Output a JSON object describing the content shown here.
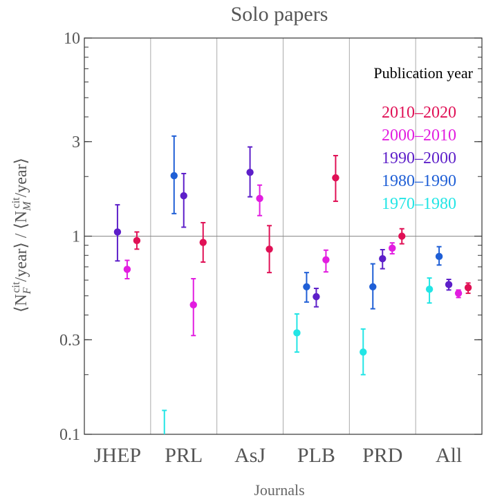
{
  "chart_data": {
    "type": "scatter",
    "title": "Solo papers",
    "xlabel": "Journals",
    "ylabel_parts": [
      "⟨N",
      "F",
      "cit",
      "/year⟩ / ⟨N",
      "M",
      "cit",
      "/year⟩"
    ],
    "categories": [
      "JHEP",
      "PRL",
      "AsJ",
      "PLB",
      "PRD",
      "All"
    ],
    "y_scale": "log",
    "ylim": [
      0.1,
      10
    ],
    "yticks": [
      {
        "value": 0.1,
        "label": "0.1"
      },
      {
        "value": 0.3,
        "label": "0.3"
      },
      {
        "value": 1,
        "label": "1"
      },
      {
        "value": 3,
        "label": "3"
      },
      {
        "value": 10,
        "label": "10"
      }
    ],
    "reference_line": 1,
    "legend": {
      "title": "Publication year",
      "placement": "top-right",
      "entries": [
        "2010–2020",
        "2000–2010",
        "1990–2000",
        "1980–1990",
        "1970–1980"
      ]
    },
    "series": [
      {
        "name": "1970–1980",
        "color": "#22e5e5",
        "points": [
          {
            "category": "PRL",
            "y": 0.1,
            "lo": 0.1,
            "hi": 0.132,
            "marker": false
          },
          {
            "category": "PLB",
            "y": 0.325,
            "lo": 0.26,
            "hi": 0.405
          },
          {
            "category": "PRD",
            "y": 0.26,
            "lo": 0.2,
            "hi": 0.34
          },
          {
            "category": "All",
            "y": 0.54,
            "lo": 0.46,
            "hi": 0.615
          }
        ]
      },
      {
        "name": "1980–1990",
        "color": "#1f5fd6",
        "points": [
          {
            "category": "PRL",
            "y": 2.02,
            "lo": 1.3,
            "hi": 3.2
          },
          {
            "category": "PLB",
            "y": 0.555,
            "lo": 0.465,
            "hi": 0.655
          },
          {
            "category": "PRD",
            "y": 0.555,
            "lo": 0.43,
            "hi": 0.725
          },
          {
            "category": "All",
            "y": 0.79,
            "lo": 0.715,
            "hi": 0.885
          }
        ]
      },
      {
        "name": "1990–2000",
        "color": "#5d1fc9",
        "points": [
          {
            "category": "JHEP",
            "y": 1.05,
            "lo": 0.75,
            "hi": 1.44
          },
          {
            "category": "PRL",
            "y": 1.6,
            "lo": 1.11,
            "hi": 2.07
          },
          {
            "category": "AsJ",
            "y": 2.1,
            "lo": 1.58,
            "hi": 2.82
          },
          {
            "category": "PLB",
            "y": 0.495,
            "lo": 0.44,
            "hi": 0.545
          },
          {
            "category": "PRD",
            "y": 0.77,
            "lo": 0.685,
            "hi": 0.855
          },
          {
            "category": "All",
            "y": 0.57,
            "lo": 0.535,
            "hi": 0.605
          }
        ]
      },
      {
        "name": "2000–2010",
        "color": "#e21de0",
        "points": [
          {
            "category": "JHEP",
            "y": 0.68,
            "lo": 0.61,
            "hi": 0.755
          },
          {
            "category": "PRL",
            "y": 0.45,
            "lo": 0.315,
            "hi": 0.61
          },
          {
            "category": "AsJ",
            "y": 1.55,
            "lo": 1.27,
            "hi": 1.81
          },
          {
            "category": "PLB",
            "y": 0.76,
            "lo": 0.66,
            "hi": 0.85
          },
          {
            "category": "PRD",
            "y": 0.87,
            "lo": 0.815,
            "hi": 0.925
          },
          {
            "category": "All",
            "y": 0.515,
            "lo": 0.49,
            "hi": 0.535
          }
        ]
      },
      {
        "name": "2010–2020",
        "color": "#e01055",
        "points": [
          {
            "category": "JHEP",
            "y": 0.95,
            "lo": 0.86,
            "hi": 1.05
          },
          {
            "category": "PRL",
            "y": 0.93,
            "lo": 0.74,
            "hi": 1.17
          },
          {
            "category": "AsJ",
            "y": 0.86,
            "lo": 0.655,
            "hi": 1.13
          },
          {
            "category": "PLB",
            "y": 1.97,
            "lo": 1.5,
            "hi": 2.55
          },
          {
            "category": "PRD",
            "y": 1.0,
            "lo": 0.915,
            "hi": 1.09
          },
          {
            "category": "All",
            "y": 0.55,
            "lo": 0.515,
            "hi": 0.58
          }
        ]
      }
    ],
    "grid": false
  }
}
